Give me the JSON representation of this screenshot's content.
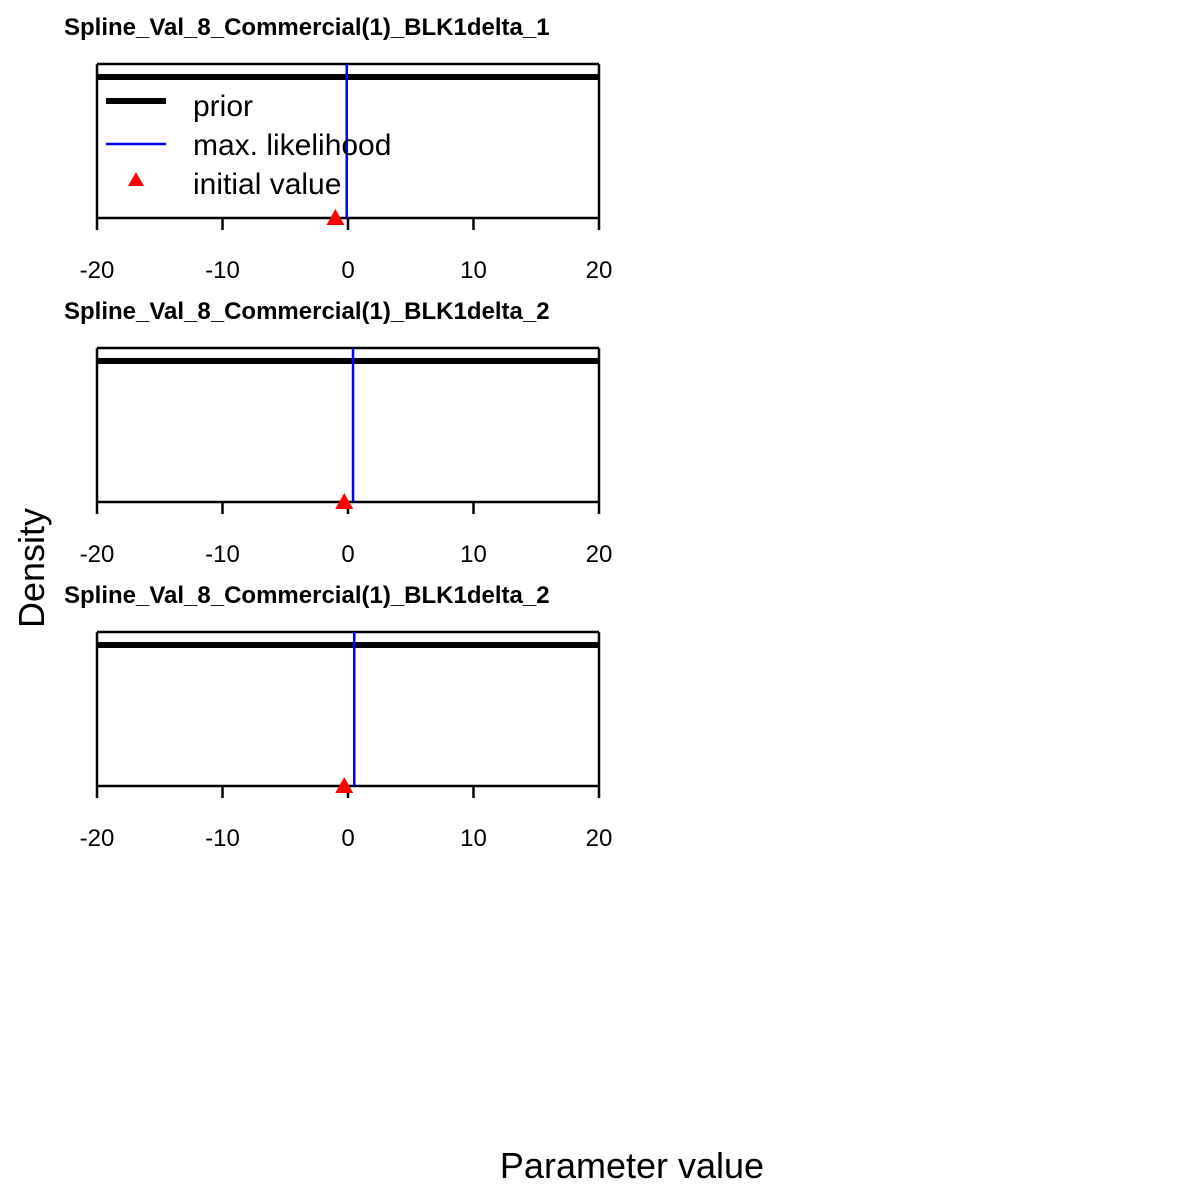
{
  "chart_data": {
    "type": "line",
    "xlabel": "Parameter value",
    "ylabel": "Density",
    "legend": {
      "placement": "top-left",
      "entries": [
        {
          "label": "prior",
          "style": "thick-line",
          "color": "#000000"
        },
        {
          "label": "max. likelihood",
          "style": "line",
          "color": "#0000ff"
        },
        {
          "label": "initial value",
          "style": "triangle",
          "color": "#ff0000"
        }
      ]
    },
    "panels": [
      {
        "title": "Spline_Val_8_Commercial(1)_BLK1delta_1",
        "xlim": [
          -20,
          20
        ],
        "xticks": [
          -20,
          -10,
          0,
          10,
          20
        ],
        "prior_density": "uniform",
        "max_likelihood": -0.1,
        "initial_value": -1.0
      },
      {
        "title": "Spline_Val_8_Commercial(1)_BLK1delta_2",
        "xlim": [
          -20,
          20
        ],
        "xticks": [
          -20,
          -10,
          0,
          10,
          20
        ],
        "prior_density": "uniform",
        "max_likelihood": 0.4,
        "initial_value": -0.3
      },
      {
        "title": "Spline_Val_8_Commercial(1)_BLK1delta_2",
        "xlim": [
          -20,
          20
        ],
        "xticks": [
          -20,
          -10,
          0,
          10,
          20
        ],
        "prior_density": "uniform",
        "max_likelihood": 0.5,
        "initial_value": -0.3
      }
    ],
    "colors": {
      "prior": "#000000",
      "max_likelihood": "#0000ff",
      "initial_value": "#ff0000"
    }
  }
}
